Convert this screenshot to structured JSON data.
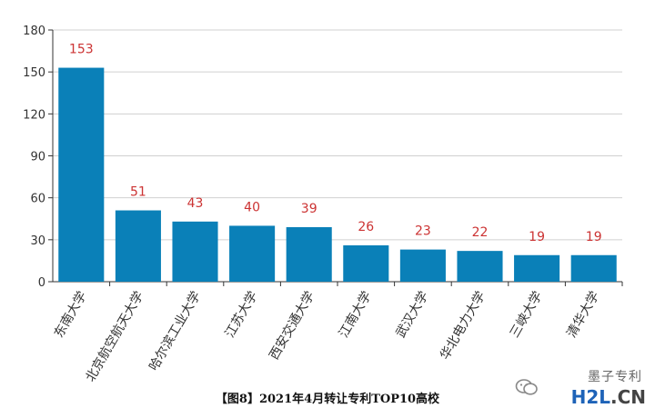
{
  "chart_data": {
    "type": "bar",
    "title": "",
    "xlabel": "",
    "ylabel": "",
    "categories": [
      "东南大学",
      "北京航空航天大学",
      "哈尔滨工业大学",
      "江苏大学",
      "西安交通大学",
      "江南大学",
      "武汉大学",
      "华北电力大学",
      "三峡大学",
      "清华大学"
    ],
    "values": [
      153,
      51,
      43,
      40,
      39,
      26,
      23,
      22,
      19,
      19
    ],
    "ylim": [
      0,
      180
    ],
    "yticks": [
      0,
      30,
      60,
      90,
      120,
      150,
      180
    ],
    "grid": true,
    "bar_color": "#0a80b8",
    "label_color": "#cc3333"
  },
  "caption": "【图8】2021年4月转让专利TOP10高校",
  "watermark": {
    "text": "墨子专利",
    "logo_main": "H2L",
    "logo_suffix": ".CN"
  }
}
